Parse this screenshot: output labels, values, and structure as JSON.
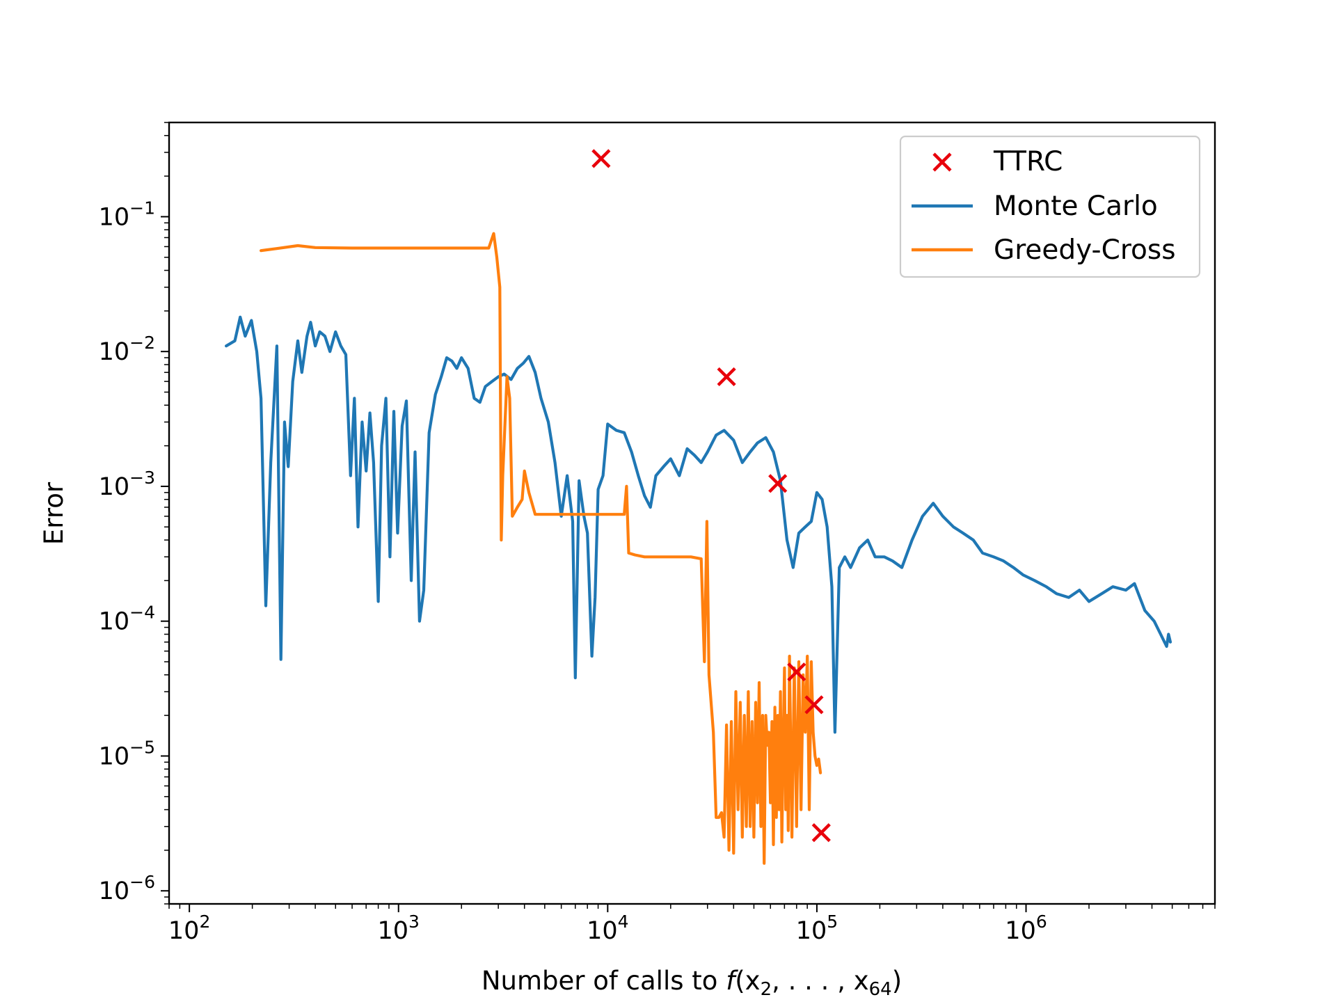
{
  "chart_data": {
    "type": "line",
    "xscale": "log",
    "yscale": "log",
    "xlim": [
      80,
      8000000
    ],
    "ylim": [
      8e-07,
      0.5
    ],
    "xlabel": {
      "prefix": "Number of calls to ",
      "func": "f",
      "args": "(x",
      "sub1": "2",
      "mid": ", . . . , x",
      "sub2": "64",
      "suffix": ")"
    },
    "ylabel": "Error",
    "x_ticks": [
      {
        "value": 100,
        "base": "10",
        "exp": "2"
      },
      {
        "value": 1000,
        "base": "10",
        "exp": "3"
      },
      {
        "value": 10000,
        "base": "10",
        "exp": "4"
      },
      {
        "value": 100000,
        "base": "10",
        "exp": "5"
      },
      {
        "value": 1000000,
        "base": "10",
        "exp": "6"
      }
    ],
    "y_ticks": [
      {
        "value": 1e-06,
        "base": "10",
        "exp": "−6"
      },
      {
        "value": 1e-05,
        "base": "10",
        "exp": "−5"
      },
      {
        "value": 0.0001,
        "base": "10",
        "exp": "−4"
      },
      {
        "value": 0.001,
        "base": "10",
        "exp": "−3"
      },
      {
        "value": 0.01,
        "base": "10",
        "exp": "−2"
      },
      {
        "value": 0.1,
        "base": "10",
        "exp": "−1"
      }
    ],
    "legend_position": "top-right",
    "grid": false,
    "series": [
      {
        "name": "TTRC",
        "kind": "scatter",
        "marker": "x",
        "color": "#e8000b",
        "points": [
          [
            9300,
            0.27
          ],
          [
            37000,
            0.0065
          ],
          [
            65000,
            0.00105
          ],
          [
            80000,
            4.2e-05
          ],
          [
            97000,
            2.4e-05
          ],
          [
            105000,
            2.7e-06
          ]
        ]
      },
      {
        "name": "Monte Carlo",
        "kind": "line",
        "color": "#1f77b4",
        "points": [
          [
            150,
            0.011
          ],
          [
            165,
            0.012
          ],
          [
            175,
            0.018
          ],
          [
            185,
            0.013
          ],
          [
            198,
            0.017
          ],
          [
            210,
            0.01
          ],
          [
            220,
            0.0045
          ],
          [
            232,
            0.00013
          ],
          [
            245,
            0.0015
          ],
          [
            262,
            0.011
          ],
          [
            274,
            5.2e-05
          ],
          [
            285,
            0.003
          ],
          [
            297,
            0.0014
          ],
          [
            312,
            0.006
          ],
          [
            330,
            0.012
          ],
          [
            345,
            0.007
          ],
          [
            365,
            0.013
          ],
          [
            380,
            0.0165
          ],
          [
            400,
            0.011
          ],
          [
            420,
            0.014
          ],
          [
            445,
            0.013
          ],
          [
            470,
            0.01
          ],
          [
            500,
            0.014
          ],
          [
            530,
            0.011
          ],
          [
            560,
            0.0095
          ],
          [
            590,
            0.0012
          ],
          [
            615,
            0.0045
          ],
          [
            640,
            0.0005
          ],
          [
            670,
            0.003
          ],
          [
            700,
            0.0013
          ],
          [
            730,
            0.0035
          ],
          [
            760,
            0.0015
          ],
          [
            800,
            0.00014
          ],
          [
            830,
            0.002
          ],
          [
            870,
            0.0045
          ],
          [
            910,
            0.0003
          ],
          [
            950,
            0.0036
          ],
          [
            990,
            0.00045
          ],
          [
            1040,
            0.0028
          ],
          [
            1090,
            0.0043
          ],
          [
            1150,
            0.0002
          ],
          [
            1200,
            0.0018
          ],
          [
            1260,
            0.0001
          ],
          [
            1320,
            0.00017
          ],
          [
            1400,
            0.0025
          ],
          [
            1500,
            0.0048
          ],
          [
            1600,
            0.0065
          ],
          [
            1700,
            0.009
          ],
          [
            1800,
            0.0085
          ],
          [
            1900,
            0.0075
          ],
          [
            2000,
            0.009
          ],
          [
            2150,
            0.0075
          ],
          [
            2300,
            0.0045
          ],
          [
            2450,
            0.0042
          ],
          [
            2600,
            0.0055
          ],
          [
            2800,
            0.006
          ],
          [
            3000,
            0.0065
          ],
          [
            3200,
            0.0068
          ],
          [
            3450,
            0.0062
          ],
          [
            3700,
            0.0075
          ],
          [
            3950,
            0.0082
          ],
          [
            4200,
            0.0092
          ],
          [
            4500,
            0.007
          ],
          [
            4800,
            0.0045
          ],
          [
            5200,
            0.003
          ],
          [
            5600,
            0.0015
          ],
          [
            6000,
            0.0006
          ],
          [
            6400,
            0.0012
          ],
          [
            6800,
            0.00055
          ],
          [
            7000,
            3.8e-05
          ],
          [
            7300,
            0.0011
          ],
          [
            7700,
            0.0006
          ],
          [
            8000,
            0.00045
          ],
          [
            8400,
            5.5e-05
          ],
          [
            8700,
            0.00015
          ],
          [
            9000,
            0.00095
          ],
          [
            9500,
            0.0012
          ],
          [
            10000,
            0.0029
          ],
          [
            11000,
            0.0026
          ],
          [
            12000,
            0.0025
          ],
          [
            13000,
            0.0018
          ],
          [
            14000,
            0.0012
          ],
          [
            15000,
            0.00085
          ],
          [
            16000,
            0.0007
          ],
          [
            17000,
            0.0012
          ],
          [
            18500,
            0.0014
          ],
          [
            20000,
            0.0016
          ],
          [
            22000,
            0.0012
          ],
          [
            24000,
            0.0019
          ],
          [
            26000,
            0.0017
          ],
          [
            28000,
            0.0015
          ],
          [
            30000,
            0.0018
          ],
          [
            33000,
            0.0024
          ],
          [
            36000,
            0.0026
          ],
          [
            40000,
            0.0022
          ],
          [
            44000,
            0.0015
          ],
          [
            48000,
            0.0018
          ],
          [
            52000,
            0.0021
          ],
          [
            57000,
            0.0023
          ],
          [
            62000,
            0.0018
          ],
          [
            67000,
            0.0011
          ],
          [
            72000,
            0.0004
          ],
          [
            77000,
            0.00025
          ],
          [
            82000,
            0.00045
          ],
          [
            88000,
            0.0005
          ],
          [
            94000,
            0.00055
          ],
          [
            100000,
            0.0009
          ],
          [
            106000,
            0.0008
          ],
          [
            112000,
            0.0005
          ],
          [
            118000,
            0.00018
          ],
          [
            122000,
            1.5e-05
          ],
          [
            128000,
            0.00025
          ],
          [
            136000,
            0.0003
          ],
          [
            145000,
            0.00025
          ],
          [
            160000,
            0.00035
          ],
          [
            175000,
            0.0004
          ],
          [
            190000,
            0.0003
          ],
          [
            210000,
            0.0003
          ],
          [
            230000,
            0.00028
          ],
          [
            255000,
            0.00025
          ],
          [
            285000,
            0.0004
          ],
          [
            320000,
            0.0006
          ],
          [
            360000,
            0.00075
          ],
          [
            400000,
            0.0006
          ],
          [
            450000,
            0.0005
          ],
          [
            500000,
            0.00045
          ],
          [
            560000,
            0.0004
          ],
          [
            620000,
            0.00032
          ],
          [
            700000,
            0.0003
          ],
          [
            780000,
            0.00028
          ],
          [
            870000,
            0.00025
          ],
          [
            970000,
            0.00022
          ],
          [
            1100000,
            0.0002
          ],
          [
            1250000,
            0.00018
          ],
          [
            1400000,
            0.00016
          ],
          [
            1600000,
            0.00015
          ],
          [
            1800000,
            0.00017
          ],
          [
            2000000,
            0.00014
          ],
          [
            2300000,
            0.00016
          ],
          [
            2600000,
            0.00018
          ],
          [
            3000000,
            0.00017
          ],
          [
            3300000,
            0.00019
          ],
          [
            3700000,
            0.00012
          ],
          [
            4100000,
            0.0001
          ],
          [
            4400000,
            8e-05
          ],
          [
            4700000,
            6.5e-05
          ],
          [
            4800000,
            8e-05
          ],
          [
            4900000,
            7e-05
          ]
        ]
      },
      {
        "name": "Greedy-Cross",
        "kind": "line",
        "color": "#ff7f0e",
        "points": [
          [
            220,
            0.056
          ],
          [
            260,
            0.058
          ],
          [
            330,
            0.061
          ],
          [
            400,
            0.059
          ],
          [
            600,
            0.0585
          ],
          [
            1000,
            0.0585
          ],
          [
            2000,
            0.0585
          ],
          [
            2700,
            0.0585
          ],
          [
            2850,
            0.075
          ],
          [
            2950,
            0.05
          ],
          [
            3050,
            0.03
          ],
          [
            3100,
            0.0004
          ],
          [
            3150,
            0.0012
          ],
          [
            3300,
            0.0065
          ],
          [
            3400,
            0.0045
          ],
          [
            3500,
            0.0006
          ],
          [
            3700,
            0.0007
          ],
          [
            3900,
            0.0008
          ],
          [
            4000,
            0.0013
          ],
          [
            4200,
            0.0009
          ],
          [
            4500,
            0.00062
          ],
          [
            5000,
            0.00062
          ],
          [
            6000,
            0.00062
          ],
          [
            8000,
            0.00062
          ],
          [
            10000,
            0.00062
          ],
          [
            12000,
            0.00062
          ],
          [
            12300,
            0.001
          ],
          [
            12600,
            0.00032
          ],
          [
            13500,
            0.00031
          ],
          [
            15000,
            0.0003
          ],
          [
            20000,
            0.0003
          ],
          [
            25000,
            0.0003
          ],
          [
            28000,
            0.00029
          ],
          [
            29000,
            5e-05
          ],
          [
            29800,
            0.00055
          ],
          [
            30500,
            4e-05
          ],
          [
            32000,
            1.5e-05
          ],
          [
            33000,
            3.5e-06
          ],
          [
            34000,
            3.5e-06
          ],
          [
            35000,
            3.8e-06
          ],
          [
            36000,
            2.5e-06
          ],
          [
            37000,
            1.7e-05
          ],
          [
            38000,
            2e-06
          ],
          [
            39000,
            1.8e-05
          ],
          [
            40000,
            1.9e-06
          ],
          [
            41000,
            3e-05
          ],
          [
            42000,
            4e-06
          ],
          [
            43000,
            2.5e-05
          ],
          [
            44000,
            2.5e-06
          ],
          [
            45000,
            2e-05
          ],
          [
            46000,
            3e-06
          ],
          [
            47000,
            3e-05
          ],
          [
            48000,
            3e-06
          ],
          [
            49000,
            1.8e-05
          ],
          [
            50000,
            2.5e-06
          ],
          [
            51000,
            2.5e-05
          ],
          [
            52000,
            4.5e-06
          ],
          [
            53000,
            3.5e-05
          ],
          [
            54000,
            3e-06
          ],
          [
            55000,
            2e-05
          ],
          [
            56000,
            1.6e-06
          ],
          [
            57000,
            2e-05
          ],
          [
            58000,
            1.2e-05
          ],
          [
            59000,
            1.5e-05
          ],
          [
            60000,
            4.5e-06
          ],
          [
            61000,
            1.8e-05
          ],
          [
            62000,
            2.2e-06
          ],
          [
            63000,
            2.3e-05
          ],
          [
            64000,
            3.5e-06
          ],
          [
            65000,
            2e-05
          ],
          [
            66000,
            4e-06
          ],
          [
            67000,
            3e-05
          ],
          [
            68000,
            2.3e-06
          ],
          [
            69000,
            1.2e-05
          ],
          [
            70000,
            4.5e-05
          ],
          [
            71000,
            4e-06
          ],
          [
            72000,
            2e-05
          ],
          [
            73000,
            2.8e-06
          ],
          [
            74000,
            5.5e-05
          ],
          [
            76000,
            2.5e-06
          ],
          [
            78000,
            4.5e-05
          ],
          [
            80000,
            3e-06
          ],
          [
            82000,
            5e-05
          ],
          [
            84000,
            4e-06
          ],
          [
            86000,
            4e-05
          ],
          [
            88000,
            1.5e-05
          ],
          [
            90000,
            5.5e-05
          ],
          [
            92000,
            4e-06
          ],
          [
            94000,
            5e-05
          ],
          [
            96000,
            1.5e-05
          ],
          [
            98000,
            1e-05
          ],
          [
            100000,
            8.5e-06
          ],
          [
            102000,
            9.5e-06
          ],
          [
            104000,
            7.5e-06
          ]
        ]
      }
    ]
  }
}
